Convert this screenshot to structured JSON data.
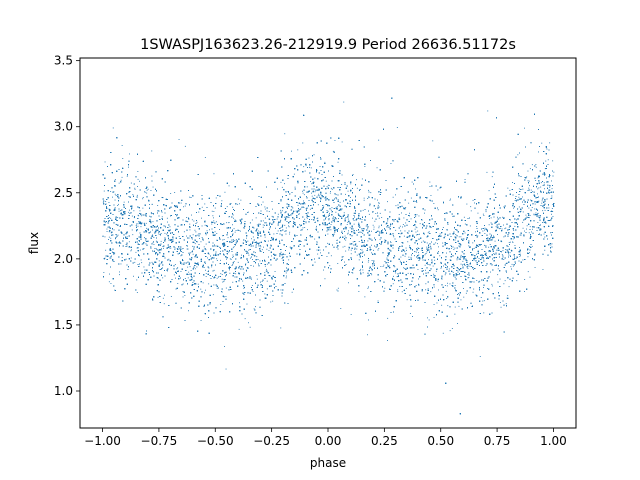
{
  "chart_data": {
    "type": "scatter",
    "title": "1SWASPJ163623.26-212919.9 Period 26636.51172s",
    "xlabel": "phase",
    "ylabel": "flux",
    "xlim": [
      -1.1,
      1.1
    ],
    "ylim": [
      0.72,
      3.52
    ],
    "x_ticks": [
      -1.0,
      -0.75,
      -0.5,
      -0.25,
      0.0,
      0.25,
      0.5,
      0.75,
      1.0
    ],
    "x_tick_labels": [
      "−1.00",
      "−0.75",
      "−0.50",
      "−0.25",
      "0.00",
      "0.25",
      "0.50",
      "0.75",
      "1.00"
    ],
    "y_ticks": [
      1.0,
      1.5,
      2.0,
      2.5,
      3.0,
      3.5
    ],
    "y_tick_labels": [
      "1.0",
      "1.5",
      "2.0",
      "2.5",
      "3.0",
      "3.5"
    ],
    "grid": false,
    "marker_color": "#1f77b4",
    "phase_range": [
      -1.0,
      1.0
    ],
    "light_curve_shape": {
      "description_phase": [
        -1.0,
        -0.9,
        -0.75,
        -0.6,
        -0.5,
        -0.35,
        -0.25,
        -0.15,
        -0.05,
        0.0,
        0.1,
        0.25,
        0.4,
        0.5,
        0.65,
        0.75,
        0.85,
        0.95,
        1.0
      ],
      "mean_flux": [
        2.3,
        2.25,
        2.15,
        2.08,
        2.05,
        2.05,
        2.12,
        2.28,
        2.42,
        2.38,
        2.22,
        2.12,
        2.08,
        2.05,
        2.04,
        2.1,
        2.25,
        2.42,
        2.38
      ],
      "scatter": 0.22,
      "points": 22000
    }
  }
}
